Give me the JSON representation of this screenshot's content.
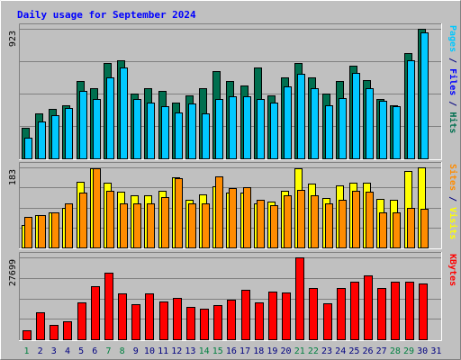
{
  "chart_title": "Daily usage for September 2024",
  "colors": {
    "background": "#c0c0c0",
    "plot_bg": "#c0c0c0",
    "title": "#0000ff",
    "hits": "#006f4f",
    "files": "#00c8ff",
    "pages": "#0000ff",
    "visits": "#ffff00",
    "sites": "#ff8c00",
    "kbytes": "#ff0000",
    "weekend_day": "#008040",
    "weekday": "#000080"
  },
  "chart_data": [
    {
      "type": "bar",
      "title": "",
      "ymax_label": "923",
      "ylim": [
        0,
        923
      ],
      "right_labels": [
        {
          "text": "Pages",
          "color": "#00c8ff"
        },
        {
          "text": " / ",
          "color": "#000080"
        },
        {
          "text": "Files",
          "color": "#0000ff"
        },
        {
          "text": " / ",
          "color": "#000080"
        },
        {
          "text": "Hits",
          "color": "#006f4f"
        }
      ],
      "categories": [
        "1",
        "2",
        "3",
        "4",
        "5",
        "6",
        "7",
        "8",
        "9",
        "10",
        "11",
        "12",
        "13",
        "14",
        "15",
        "16",
        "17",
        "18",
        "19",
        "20",
        "21",
        "22",
        "23",
        "24",
        "25",
        "26",
        "27",
        "28",
        "29",
        "30",
        "31"
      ],
      "series": [
        {
          "name": "Hits",
          "color": "#006f4f",
          "values": [
            220,
            320,
            350,
            380,
            550,
            500,
            680,
            700,
            460,
            500,
            480,
            400,
            450,
            500,
            620,
            550,
            520,
            650,
            450,
            580,
            680,
            580,
            460,
            550,
            660,
            560,
            420,
            380,
            750,
            923,
            0
          ]
        },
        {
          "name": "Files",
          "color": "#00c8ff",
          "values": [
            150,
            260,
            310,
            360,
            480,
            420,
            580,
            650,
            420,
            400,
            370,
            330,
            390,
            320,
            420,
            440,
            440,
            420,
            400,
            510,
            600,
            500,
            380,
            430,
            610,
            500,
            410,
            370,
            700,
            900,
            0
          ]
        }
      ]
    },
    {
      "type": "bar",
      "title": "",
      "ymax_label": "183",
      "ylim": [
        0,
        183
      ],
      "right_labels": [
        {
          "text": "Sites",
          "color": "#ff8c00"
        },
        {
          "text": " / ",
          "color": "#000080"
        },
        {
          "text": "Visits",
          "color": "#ffff00"
        }
      ],
      "categories": [
        "1",
        "2",
        "3",
        "4",
        "5",
        "6",
        "7",
        "8",
        "9",
        "10",
        "11",
        "12",
        "13",
        "14",
        "15",
        "16",
        "17",
        "18",
        "19",
        "20",
        "21",
        "22",
        "23",
        "24",
        "25",
        "26",
        "27",
        "28",
        "29",
        "30",
        "31"
      ],
      "series": [
        {
          "name": "Visits",
          "color": "#ffff00",
          "values": [
            52,
            75,
            80,
            90,
            150,
            180,
            148,
            128,
            120,
            120,
            130,
            160,
            110,
            122,
            140,
            125,
            125,
            100,
            105,
            130,
            180,
            145,
            113,
            142,
            148,
            148,
            112,
            110,
            175,
            183,
            0
          ]
        },
        {
          "name": "Sites",
          "color": "#ff8c00",
          "values": [
            70,
            75,
            80,
            100,
            125,
            180,
            130,
            100,
            100,
            100,
            115,
            158,
            100,
            100,
            162,
            135,
            137,
            110,
            97,
            120,
            132,
            120,
            100,
            110,
            130,
            128,
            80,
            80,
            90,
            88,
            0
          ]
        }
      ]
    },
    {
      "type": "bar",
      "title": "",
      "ymax_label": "27699",
      "ylim": [
        0,
        27699
      ],
      "right_labels": [
        {
          "text": "KBytes",
          "color": "#ff0000"
        }
      ],
      "categories": [
        "1",
        "2",
        "3",
        "4",
        "5",
        "6",
        "7",
        "8",
        "9",
        "10",
        "11",
        "12",
        "13",
        "14",
        "15",
        "16",
        "17",
        "18",
        "19",
        "20",
        "21",
        "22",
        "23",
        "24",
        "25",
        "26",
        "27",
        "28",
        "29",
        "30",
        "31"
      ],
      "series": [
        {
          "name": "KBytes",
          "color": "#ff0000",
          "values": [
            3000,
            9200,
            4800,
            6000,
            12500,
            18000,
            22500,
            15500,
            11800,
            15500,
            12700,
            14100,
            10900,
            10500,
            11600,
            13400,
            16600,
            12500,
            16200,
            15700,
            27699,
            17300,
            12100,
            17300,
            19500,
            21600,
            17400,
            19400,
            19400,
            19000,
            0
          ]
        }
      ]
    }
  ],
  "x_axis": {
    "day_labels": [
      "1",
      "2",
      "3",
      "4",
      "5",
      "6",
      "7",
      "8",
      "9",
      "10",
      "11",
      "12",
      "13",
      "14",
      "15",
      "16",
      "17",
      "18",
      "19",
      "20",
      "21",
      "22",
      "23",
      "24",
      "25",
      "26",
      "27",
      "28",
      "29",
      "30",
      "31"
    ],
    "weekend_days": [
      "1",
      "7",
      "8",
      "14",
      "15",
      "21",
      "22",
      "28",
      "29"
    ]
  }
}
